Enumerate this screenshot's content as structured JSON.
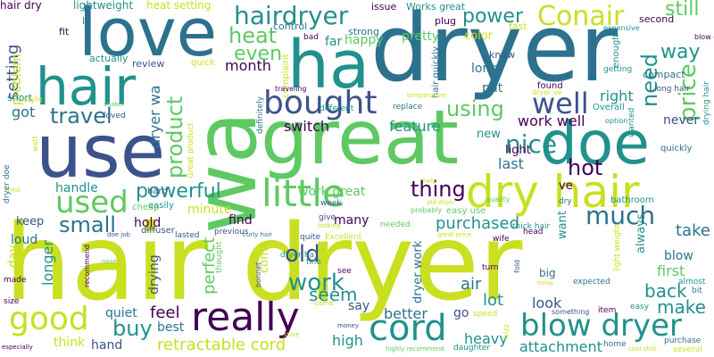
{
  "palette": {
    "purple": "#440154",
    "indigo": "#3b528b",
    "teal": "#21918c",
    "green": "#5ec962",
    "yellow": "#c8e020",
    "blue": "#2c728e"
  },
  "words": [
    {
      "text": "hair dryer"
    },
    {
      "text": "dryer"
    },
    {
      "text": "great"
    },
    {
      "text": "wa"
    },
    {
      "text": "use"
    },
    {
      "text": "love"
    },
    {
      "text": "hair"
    },
    {
      "text": "ha"
    },
    {
      "text": "doe"
    },
    {
      "text": "dry hair"
    },
    {
      "text": "bought"
    },
    {
      "text": "little"
    },
    {
      "text": "really"
    },
    {
      "text": "cord"
    },
    {
      "text": "blow dryer"
    },
    {
      "text": "hairdryer"
    },
    {
      "text": "Conair"
    },
    {
      "text": "used"
    },
    {
      "text": "good"
    },
    {
      "text": "powerful"
    },
    {
      "text": "heat"
    },
    {
      "text": "travel"
    },
    {
      "text": "product"
    },
    {
      "text": "well"
    },
    {
      "text": "using"
    },
    {
      "text": "nice"
    },
    {
      "text": "much"
    },
    {
      "text": "hot"
    },
    {
      "text": "work"
    },
    {
      "text": "old"
    },
    {
      "text": "small"
    },
    {
      "text": "thing"
    },
    {
      "text": "buy"
    },
    {
      "text": "power"
    },
    {
      "text": "price"
    },
    {
      "text": "need"
    },
    {
      "text": "way"
    },
    {
      "text": "still"
    },
    {
      "text": "retractable cord"
    },
    {
      "text": "feel"
    },
    {
      "text": "even"
    },
    {
      "text": "make"
    },
    {
      "text": "back"
    },
    {
      "text": "seem"
    },
    {
      "text": "take"
    },
    {
      "text": "setting"
    },
    {
      "text": "problem"
    },
    {
      "text": "got"
    },
    {
      "text": "work well"
    },
    {
      "text": "perfect"
    },
    {
      "text": "dryer wa"
    },
    {
      "text": "month"
    },
    {
      "text": "purchased"
    },
    {
      "text": "air"
    },
    {
      "text": "lot"
    },
    {
      "text": "attachment"
    },
    {
      "text": "better"
    },
    {
      "text": "high"
    },
    {
      "text": "hand"
    },
    {
      "text": "think"
    },
    {
      "text": "quiet"
    },
    {
      "text": "best"
    },
    {
      "text": "look"
    },
    {
      "text": "heavy"
    },
    {
      "text": "first"
    },
    {
      "text": "blow"
    },
    {
      "text": "longer"
    },
    {
      "text": "day"
    },
    {
      "text": "drying"
    },
    {
      "text": "pretty"
    },
    {
      "text": "color"
    },
    {
      "text": "long"
    },
    {
      "text": "put"
    },
    {
      "text": "right"
    },
    {
      "text": "never"
    },
    {
      "text": "last"
    },
    {
      "text": "light"
    },
    {
      "text": "new"
    },
    {
      "text": "feature"
    },
    {
      "text": "switch"
    },
    {
      "text": "happy"
    },
    {
      "text": "far"
    },
    {
      "text": "handle"
    },
    {
      "text": "keep"
    },
    {
      "text": "loud"
    },
    {
      "text": "hold"
    },
    {
      "text": "minute"
    },
    {
      "text": "find"
    },
    {
      "text": "many"
    },
    {
      "text": "come"
    },
    {
      "text": "work great"
    },
    {
      "text": "dryer work"
    },
    {
      "text": "want"
    },
    {
      "text": "always"
    },
    {
      "text": "ve"
    },
    {
      "text": "say"
    },
    {
      "text": "go"
    },
    {
      "text": "short"
    },
    {
      "text": "fit"
    },
    {
      "text": "actually"
    },
    {
      "text": "review"
    },
    {
      "text": "quick"
    },
    {
      "text": "lightweight"
    },
    {
      "text": "heat setting"
    },
    {
      "text": "hair dry"
    },
    {
      "text": "issue"
    },
    {
      "text": "Works great"
    },
    {
      "text": "plug"
    },
    {
      "text": "le"
    },
    {
      "text": "second"
    },
    {
      "text": "control"
    },
    {
      "text": "strong"
    },
    {
      "text": "bad"
    },
    {
      "text": "fast"
    },
    {
      "text": "know"
    },
    {
      "text": "enough"
    },
    {
      "text": "compact"
    },
    {
      "text": "expensive"
    },
    {
      "text": "blow dry"
    },
    {
      "text": "getting"
    },
    {
      "text": "long hair"
    },
    {
      "text": "found"
    },
    {
      "text": "dryer ve"
    },
    {
      "text": "option"
    },
    {
      "text": "Overall"
    },
    {
      "text": "wanted"
    },
    {
      "text": "drying hair"
    },
    {
      "text": "quickly"
    },
    {
      "text": "hair quickly"
    },
    {
      "text": "complaint"
    },
    {
      "text": "traveling"
    },
    {
      "text": "temperature"
    },
    {
      "text": "replace"
    },
    {
      "text": "different"
    },
    {
      "text": "definitely"
    },
    {
      "text": "shaker"
    },
    {
      "text": "style"
    },
    {
      "text": "loved"
    },
    {
      "text": "cheap"
    },
    {
      "text": "easily"
    },
    {
      "text": "hard"
    },
    {
      "text": "week"
    },
    {
      "text": "give"
    },
    {
      "text": "old dryer"
    },
    {
      "text": "quality"
    },
    {
      "text": "needed"
    },
    {
      "text": "probably"
    },
    {
      "text": "Great product"
    },
    {
      "text": "thick hair"
    },
    {
      "text": "dry"
    },
    {
      "text": "bathroom"
    },
    {
      "text": "easy use"
    },
    {
      "text": "head"
    },
    {
      "text": "wife"
    },
    {
      "text": "great price"
    },
    {
      "text": "previous"
    },
    {
      "text": "diffuser"
    },
    {
      "text": "curly hair"
    },
    {
      "text": "doe job"
    },
    {
      "text": "lasted"
    },
    {
      "text": "quite"
    },
    {
      "text": "Excellent"
    },
    {
      "text": "thought"
    },
    {
      "text": "recommend"
    },
    {
      "text": "nose"
    },
    {
      "text": "bonnet"
    },
    {
      "text": "wish"
    },
    {
      "text": "dryer ha"
    },
    {
      "text": "fine"
    },
    {
      "text": "see"
    },
    {
      "text": "made"
    },
    {
      "text": "size"
    },
    {
      "text": "came"
    },
    {
      "text": "money"
    },
    {
      "text": "store"
    },
    {
      "text": "especially"
    },
    {
      "text": "highly recommend"
    },
    {
      "text": "daughter"
    },
    {
      "text": "turn"
    },
    {
      "text": "big"
    },
    {
      "text": "noisy"
    },
    {
      "text": "fold"
    },
    {
      "text": "expected"
    },
    {
      "text": "light weight"
    },
    {
      "text": "almost"
    },
    {
      "text": "bit"
    },
    {
      "text": "something"
    },
    {
      "text": "item"
    },
    {
      "text": "easy"
    },
    {
      "text": "home"
    },
    {
      "text": "purchase"
    },
    {
      "text": "several"
    },
    {
      "text": "cool shot"
    },
    {
      "text": "speed"
    },
    {
      "text": "frizz"
    },
    {
      "text": "watt"
    },
    {
      "text": "tried"
    },
    {
      "text": "looking"
    },
    {
      "text": "help"
    },
    {
      "text": "dryer doe"
    }
  ]
}
